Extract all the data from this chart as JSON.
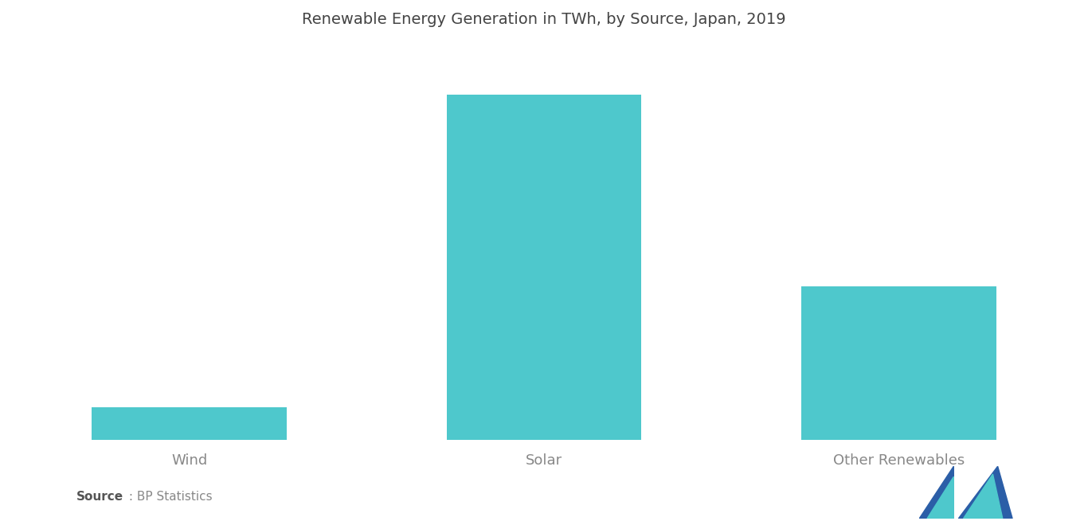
{
  "title": "Renewable Energy Generation in TWh, by Source, Japan, 2019",
  "categories": [
    "Wind",
    "Solar",
    "Other Renewables"
  ],
  "values": [
    7,
    74,
    33
  ],
  "bar_color": "#4ec8cc",
  "background_color": "#ffffff",
  "title_fontsize": 14,
  "label_fontsize": 13,
  "source_bold": "Source",
  "source_normal": " : BP Statistics",
  "fig_width": 13.66,
  "fig_height": 6.55,
  "bar_width": 0.55,
  "xlim": [
    -0.5,
    2.5
  ],
  "ylim": [
    0,
    85
  ],
  "text_color": "#888888",
  "title_color": "#444444"
}
